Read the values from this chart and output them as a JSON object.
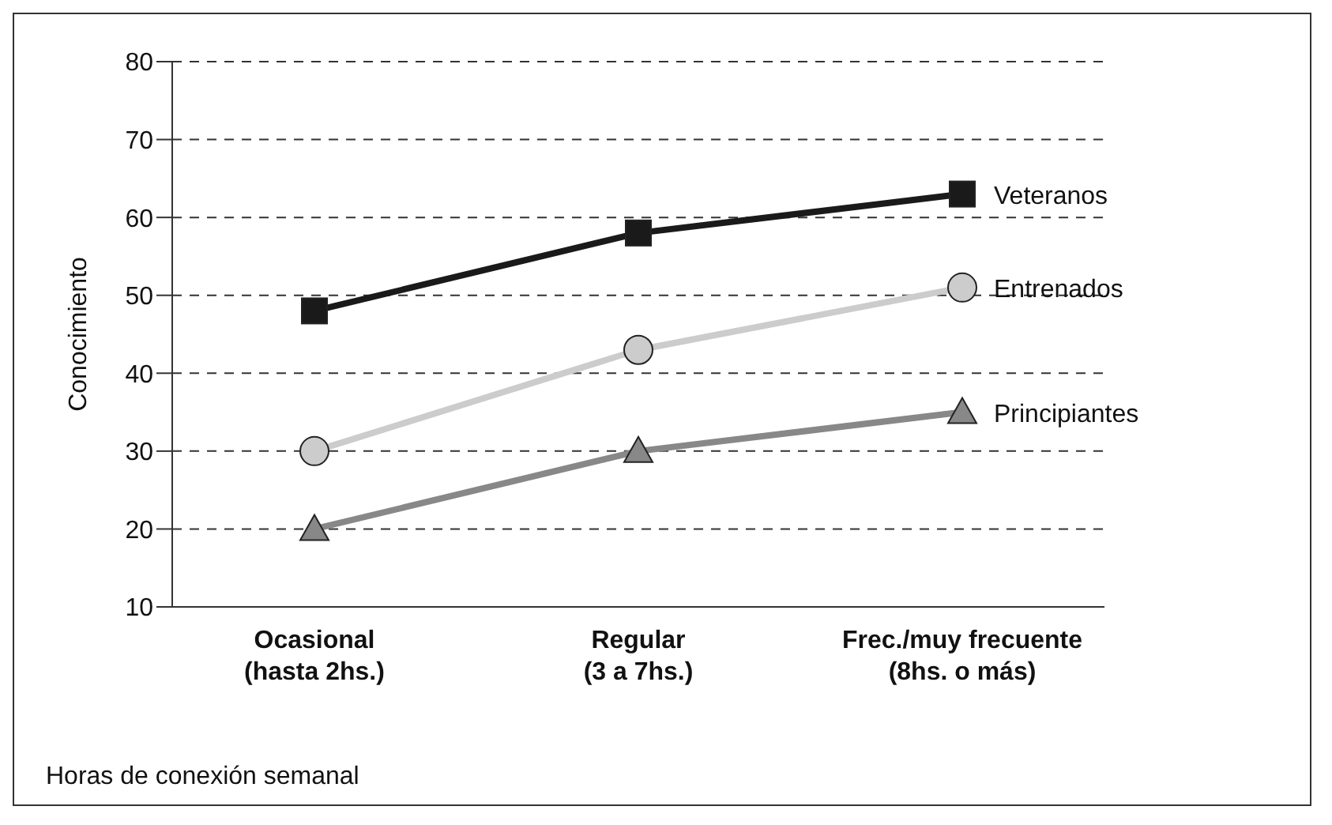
{
  "chart_data": {
    "type": "line",
    "ylabel": "Conocimiento",
    "xlabel": "Horas de conexión semanal",
    "categories": [
      "Ocasional\n(hasta 2hs.)",
      "Regular\n(3 a 7hs.)",
      "Frec./muy frecuente\n(8hs. o más)"
    ],
    "series": [
      {
        "name": "Veteranos",
        "color": "#1a1a1a",
        "marker": "square",
        "values": [
          48,
          58,
          63
        ]
      },
      {
        "name": "Entrenados",
        "color": "#cccccc",
        "marker": "circle",
        "values": [
          30,
          43,
          51
        ]
      },
      {
        "name": "Principiantes",
        "color": "#888888",
        "marker": "triangle",
        "values": [
          20,
          30,
          35
        ]
      }
    ],
    "ylim": [
      10,
      80
    ],
    "yticks": [
      10,
      20,
      30,
      40,
      50,
      60,
      70,
      80
    ],
    "grid": "y"
  }
}
